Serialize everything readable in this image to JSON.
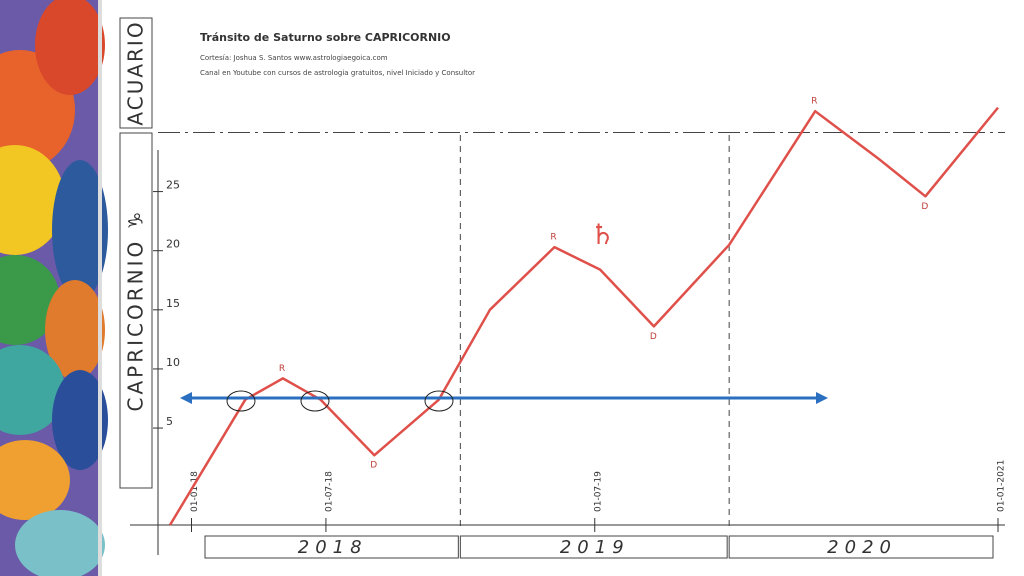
{
  "chart_data": {
    "type": "line",
    "title": "Tránsito de Saturno sobre CAPRICORNIO",
    "subtitle": [
      "Cortesía: Joshua S. Santos  www.astrologiaegoica.com",
      "Canal en Youtube con cursos de astrologia gratuitos, nivel Iniciado y Consultor"
    ],
    "y_sign_labels": [
      "ACUARIO",
      "CAPRICORNIO ♑"
    ],
    "planet_symbol": "♄",
    "year_labels": [
      "2018",
      "2019",
      "2020"
    ],
    "x": [
      2017.92,
      2018.2,
      2018.34,
      2018.48,
      2018.68,
      2018.92,
      2019.11,
      2019.35,
      2019.52,
      2019.72,
      2020.0,
      2020.32,
      2020.56,
      2020.73,
      2021.0
    ],
    "series": [
      {
        "color": "#e0504a",
        "values": [
          -3.2,
          7.4,
          9.2,
          7.4,
          2.7,
          7.4,
          15,
          20.3,
          18.4,
          13.6,
          20.5,
          31.8,
          27.7,
          24.6,
          32.1
        ]
      }
    ],
    "annotations": [
      {
        "text": "R",
        "x": 2018.34,
        "y": 9.2
      },
      {
        "text": "D",
        "x": 2018.68,
        "y": 2.7
      },
      {
        "text": "R",
        "x": 2019.35,
        "y": 20.3
      },
      {
        "text": "D",
        "x": 2019.72,
        "y": 13.6
      },
      {
        "text": "R",
        "x": 2020.32,
        "y": 31.8
      },
      {
        "text": "D",
        "x": 2020.73,
        "y": 24.6
      }
    ],
    "sign_boundary": 30,
    "xlim": [
      2017.92,
      2021.0
    ],
    "xticks": [
      {
        "value": 2018,
        "label": "01-01-18"
      },
      {
        "value": 2018.5,
        "label": "01-07-18"
      },
      {
        "value": 2019.5,
        "label": "01-07-19"
      },
      {
        "value": 2021,
        "label": "01-01-2021"
      }
    ],
    "ylim": [
      -3.2,
      33
    ],
    "yticks": [
      5,
      10,
      15,
      20,
      25
    ]
  }
}
